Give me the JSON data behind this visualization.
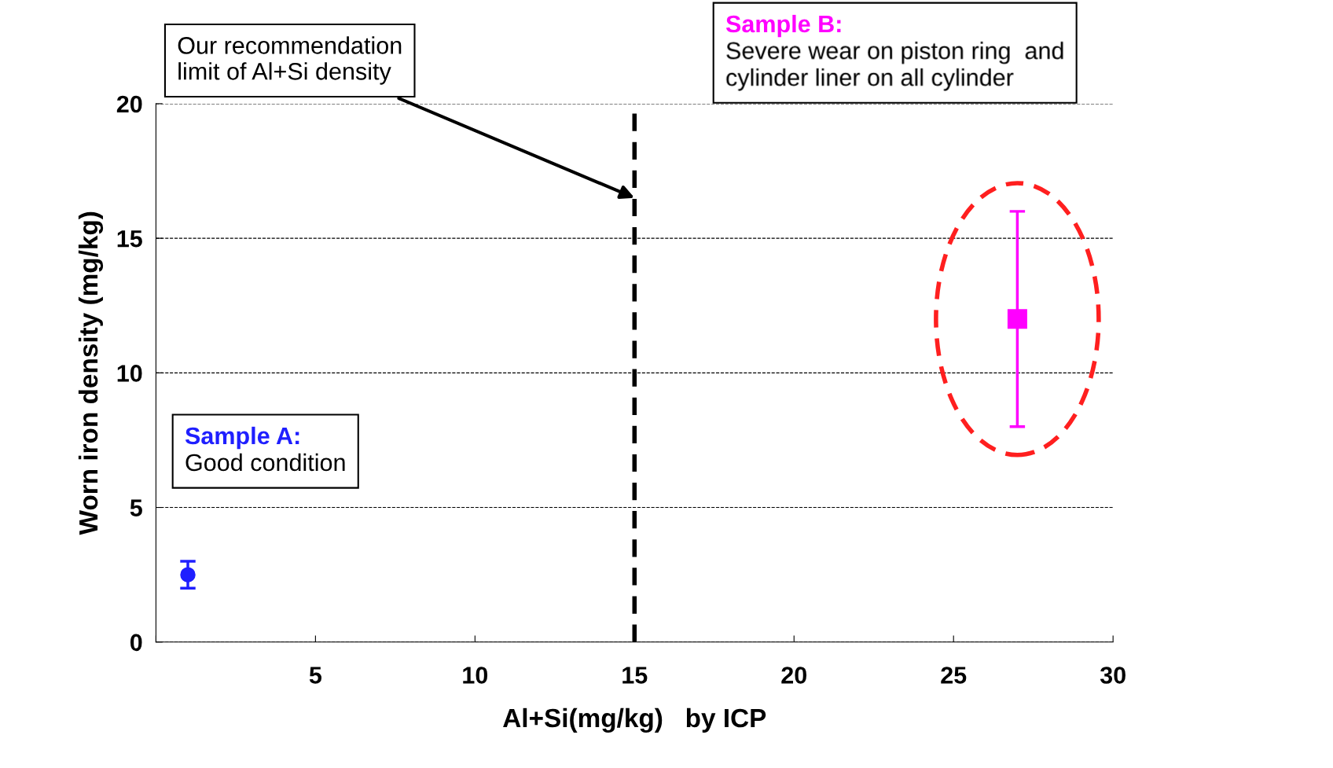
{
  "chart_data": {
    "type": "scatter",
    "xlabel": "Al+Si(mg/kg)   by ICP",
    "ylabel": "Worn iron density (mg/kg)",
    "xlim": [
      0,
      30
    ],
    "xticks": [
      {
        "value": 0,
        "label": null
      },
      5,
      10,
      15,
      20,
      25,
      30
    ],
    "ylim": [
      0,
      20
    ],
    "yticks": [
      0,
      5,
      10,
      15,
      20
    ],
    "grid": "y",
    "series": [
      {
        "color": "#1f1fff",
        "x": [
          1
        ],
        "values": [
          2.5
        ],
        "errors": [
          0.5
        ],
        "marker": "circle"
      },
      {
        "color": "#ff00ff",
        "x": [
          27
        ],
        "values": [
          12
        ],
        "errors": [
          4
        ],
        "marker": "square"
      }
    ],
    "ref_lines": [
      {
        "axis": "x",
        "value": 15,
        "label": "Our recommendation\nlimit of Al+Si density",
        "color": "#000000",
        "line_style": "dashed"
      }
    ],
    "annotations": [
      "Sample A:\nGood condition",
      "Sample B:\nSevere wear on piston ring  and\ncylinder liner on all cylinder"
    ]
  }
}
